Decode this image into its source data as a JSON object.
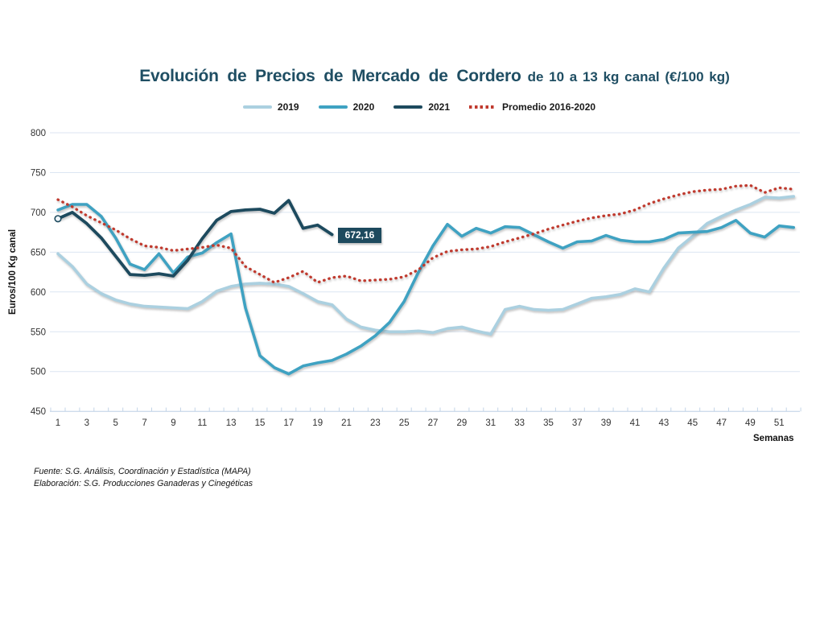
{
  "title": {
    "main": "Evolución de Precios de Mercado de Cordero",
    "sub": "de 10 a 13 kg canal (€/100 kg)"
  },
  "legend": [
    {
      "label": "2019",
      "color": "#abd0e0",
      "style": "solid"
    },
    {
      "label": "2020",
      "color": "#3fa2c2",
      "style": "solid"
    },
    {
      "label": "2021",
      "color": "#1d4a5e",
      "style": "solid"
    },
    {
      "label": "Promedio 2016-2020",
      "color": "#c03a2e",
      "style": "dotted"
    }
  ],
  "y_axis": {
    "title": "Euros/100 Kg canal",
    "ticks": [
      450,
      500,
      550,
      600,
      650,
      700,
      750,
      800
    ]
  },
  "x_axis": {
    "title": "Semanas",
    "tick_labels": [
      1,
      3,
      5,
      7,
      9,
      11,
      13,
      15,
      17,
      19,
      21,
      23,
      25,
      27,
      29,
      31,
      33,
      35,
      37,
      39,
      41,
      43,
      45,
      47,
      49,
      51
    ],
    "weeks_total": 52
  },
  "annotation": {
    "label": "672,16",
    "series": "2021",
    "week": 20,
    "value": 672.16
  },
  "footer": {
    "line1": "Fuente: S.G. Análisis, Coordinación y Estadística (MAPA)",
    "line2": "Elaboración: S.G. Producciones Ganaderas y Cinegéticas"
  },
  "chart_data": {
    "type": "line",
    "title": "Evolución de Precios de Mercado de Cordero de 10 a 13 kg canal (€/100 kg)",
    "xlabel": "Semanas",
    "ylabel": "Euros/100 Kg canal",
    "ylim": [
      450,
      800
    ],
    "xlim": [
      1,
      52
    ],
    "grid": true,
    "legend_position": "top",
    "x": [
      1,
      2,
      3,
      4,
      5,
      6,
      7,
      8,
      9,
      10,
      11,
      12,
      13,
      14,
      15,
      16,
      17,
      18,
      19,
      20,
      21,
      22,
      23,
      24,
      25,
      26,
      27,
      28,
      29,
      30,
      31,
      32,
      33,
      34,
      35,
      36,
      37,
      38,
      39,
      40,
      41,
      42,
      43,
      44,
      45,
      46,
      47,
      48,
      49,
      50,
      51,
      52
    ],
    "series": [
      {
        "name": "2019",
        "color": "#abd0e0",
        "dash": "solid",
        "width": 3.6,
        "values": [
          648,
          632,
          610,
          598,
          590,
          585,
          582,
          581,
          580,
          579,
          588,
          601,
          607,
          610,
          611,
          610,
          607,
          598,
          588,
          584,
          566,
          556,
          552,
          550,
          550,
          551,
          549,
          554,
          556,
          551,
          547,
          578,
          582,
          578,
          577,
          578,
          585,
          592,
          594,
          597,
          604,
          600,
          630,
          655,
          670,
          686,
          695,
          703,
          710,
          719,
          718,
          720
        ]
      },
      {
        "name": "2020",
        "color": "#3fa2c2",
        "dash": "solid",
        "width": 3.6,
        "values": [
          703,
          710,
          710,
          695,
          668,
          635,
          628,
          648,
          624,
          644,
          649,
          662,
          673,
          580,
          520,
          505,
          497,
          507,
          511,
          514,
          522,
          532,
          545,
          562,
          588,
          625,
          658,
          685,
          670,
          680,
          674,
          682,
          681,
          672,
          663,
          655,
          663,
          664,
          671,
          665,
          663,
          663,
          666,
          674,
          675,
          676,
          681,
          690,
          674,
          669,
          683,
          681
        ]
      },
      {
        "name": "2021",
        "color": "#1d4a5e",
        "dash": "solid",
        "width": 3.8,
        "start_marker": true,
        "values": [
          692,
          700,
          686,
          668,
          645,
          622,
          621,
          623,
          620,
          640,
          667,
          690,
          701,
          703,
          704,
          699,
          715,
          680,
          684,
          672.16
        ]
      },
      {
        "name": "Promedio 2016-2020",
        "color": "#c03a2e",
        "dash": "dotted",
        "width": 3.3,
        "values": [
          716,
          707,
          696,
          687,
          678,
          667,
          658,
          656,
          652,
          654,
          656,
          659,
          655,
          632,
          622,
          612,
          618,
          626,
          612,
          618,
          620,
          614,
          615,
          616,
          619,
          628,
          643,
          651,
          653,
          654,
          657,
          663,
          668,
          673,
          679,
          684,
          689,
          693,
          696,
          698,
          703,
          711,
          717,
          722,
          726,
          728,
          729,
          733,
          734,
          725,
          731,
          729
        ]
      }
    ]
  }
}
